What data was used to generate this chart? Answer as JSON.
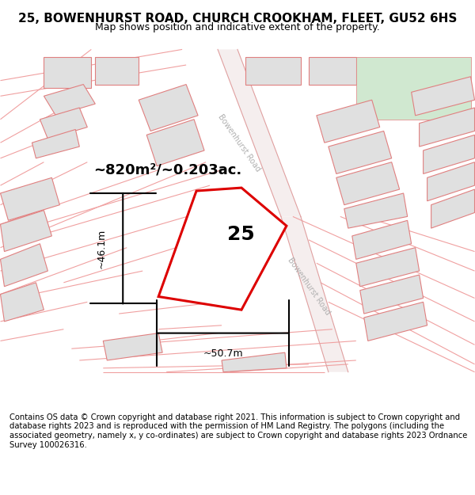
{
  "title": "25, BOWENHURST ROAD, CHURCH CROOKHAM, FLEET, GU52 6HS",
  "subtitle": "Map shows position and indicative extent of the property.",
  "area_text": "~820m²/~0.203ac.",
  "width_label": "~50.7m",
  "height_label": "~46.1m",
  "plot_number": "25",
  "road_label_top": "Bowenhurst Road",
  "road_label_mid": "Bowenhurst Road",
  "footer": "Contains OS data © Crown copyright and database right 2021. This information is subject to Crown copyright and database rights 2023 and is reproduced with the permission of HM Land Registry. The polygons (including the associated geometry, namely x, y co-ordinates) are subject to Crown copyright and database rights 2023 Ordnance Survey 100026316.",
  "bg_color": "#ffffff",
  "map_bg": "#ffffff",
  "plot_color": "#dd0000",
  "building_fill": "#e0e0e0",
  "building_edge": "#e08080",
  "green_fill": "#d0e8d0",
  "road_line_color": "#f0a0a0",
  "road_fill": "#f8f0f0",
  "title_fontsize": 11,
  "subtitle_fontsize": 9
}
